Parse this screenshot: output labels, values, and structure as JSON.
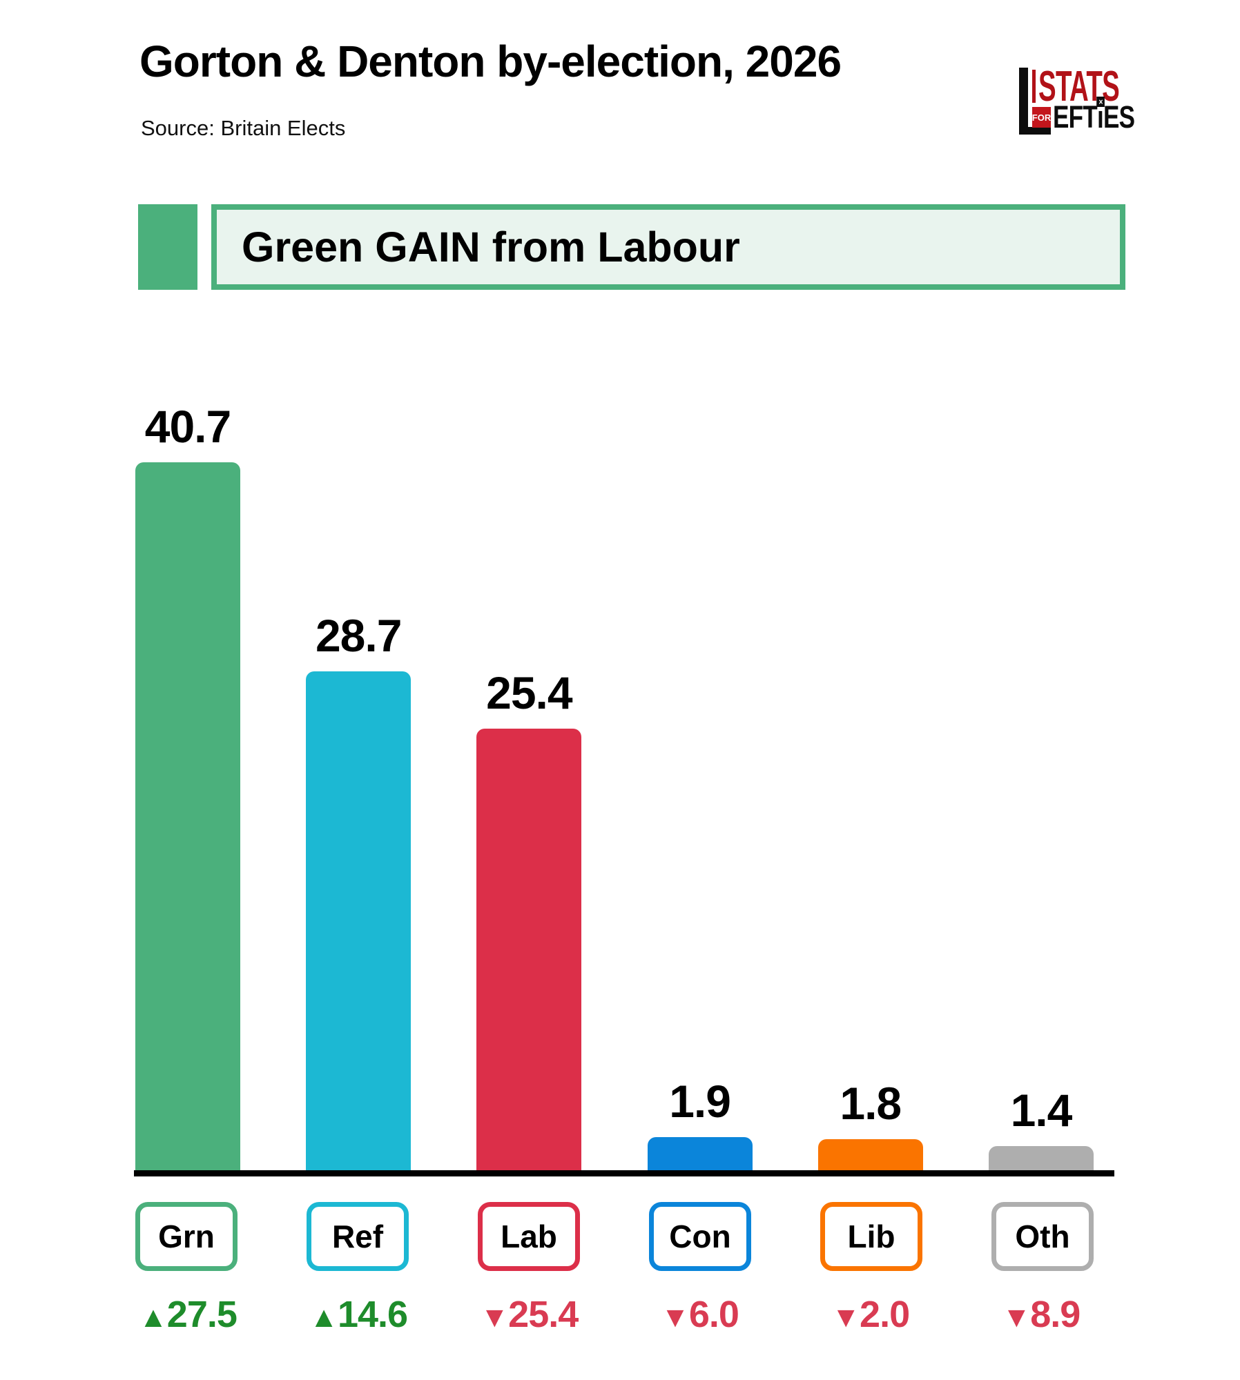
{
  "header": {
    "title": "Gorton & Denton by-election, 2026",
    "source": "Source: Britain Elects"
  },
  "logo": {
    "stats": "STATS",
    "for_word": "FOR",
    "efties_pre": "EFT",
    "efties_i": "ı",
    "efties_post": "ES",
    "cross": "×",
    "red": "#b11218"
  },
  "banner": {
    "text": "Green GAIN from Labour",
    "accent_color": "#4bb07c",
    "background": "#e9f4ee"
  },
  "chart_data": {
    "type": "bar",
    "title": "Gorton & Denton by-election, 2026",
    "source": "Britain Elects",
    "categories": [
      "Grn",
      "Ref",
      "Lab",
      "Con",
      "Lib",
      "Oth"
    ],
    "values": [
      40.7,
      28.7,
      25.4,
      1.9,
      1.8,
      1.4
    ],
    "value_labels": [
      "40.7",
      "28.7",
      "25.4",
      "1.9",
      "1.8",
      "1.4"
    ],
    "colors": [
      "#4bb07c",
      "#1cb8d3",
      "#dc2f49",
      "#0b85da",
      "#fa7400",
      "#aeaeae"
    ],
    "changes": [
      {
        "direction": "up",
        "arrow": "▲",
        "value": "27.5"
      },
      {
        "direction": "up",
        "arrow": "▲",
        "value": "14.6"
      },
      {
        "direction": "down",
        "arrow": "▼",
        "value": "25.4"
      },
      {
        "direction": "down",
        "arrow": "▼",
        "value": "6.0"
      },
      {
        "direction": "down",
        "arrow": "▼",
        "value": "2.0"
      },
      {
        "direction": "down",
        "arrow": "▼",
        "value": "8.9"
      }
    ],
    "gain_color": "#1e8c2b",
    "loss_color": "#d93b52",
    "ylim": [
      0,
      41
    ],
    "grid": false,
    "legend": false,
    "axis_line_color": "#000000"
  }
}
